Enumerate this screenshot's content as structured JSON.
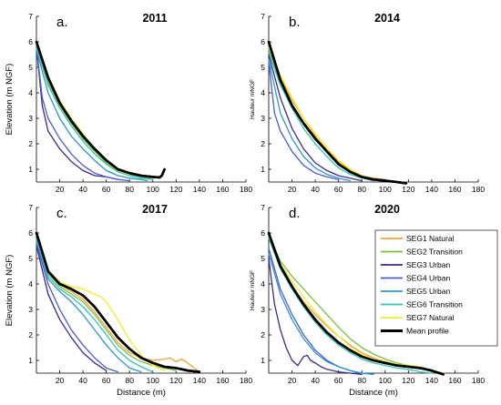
{
  "legend": {
    "entries": [
      {
        "label": "SEG1 Natural",
        "color": "#f2a341"
      },
      {
        "label": "SEG2 Transition",
        "color": "#7ac143"
      },
      {
        "label": "SEG3 Urban",
        "color": "#3a2a8c"
      },
      {
        "label": "SEG4 Urban",
        "color": "#4a5bd0"
      },
      {
        "label": "SEG5 Urban",
        "color": "#2e95d3"
      },
      {
        "label": "SEG6 Transition",
        "color": "#35c4b4"
      },
      {
        "label": "SEG7 Natural",
        "color": "#f3ea2f"
      },
      {
        "label": "Mean profile",
        "color": "#000000"
      }
    ]
  },
  "chart_data": [
    {
      "type": "line",
      "panel_label": "a.",
      "title": "2011",
      "ylabel": "Elevation (m NGF)",
      "xlabel": "",
      "xlim": [
        0,
        180
      ],
      "ylim": [
        0.5,
        7
      ],
      "xticks": [
        20,
        40,
        60,
        80,
        100,
        120,
        140,
        160,
        180
      ],
      "yticks": [
        1,
        2,
        3,
        4,
        5,
        6,
        7
      ],
      "series": [
        {
          "name": "SEG1 Natural",
          "x": [
            0,
            10,
            20,
            30,
            40,
            50,
            60,
            70,
            80,
            90,
            100,
            108
          ],
          "y": [
            5.9,
            4.5,
            3.6,
            2.9,
            2.3,
            1.8,
            1.35,
            1.0,
            0.85,
            0.75,
            0.7,
            0.7
          ]
        },
        {
          "name": "SEG2 Transition",
          "x": [
            0,
            10,
            20,
            30,
            40,
            50,
            60,
            70,
            80,
            90,
            98
          ],
          "y": [
            5.8,
            4.4,
            3.5,
            2.8,
            2.2,
            1.7,
            1.25,
            0.95,
            0.8,
            0.7,
            0.65
          ]
        },
        {
          "name": "SEG3 Urban",
          "x": [
            0,
            5,
            10,
            20,
            30,
            40,
            50,
            60,
            70
          ],
          "y": [
            5.8,
            3.5,
            2.5,
            1.8,
            1.3,
            0.95,
            0.75,
            0.7,
            0.6
          ]
        },
        {
          "name": "SEG4 Urban",
          "x": [
            0,
            5,
            10,
            20,
            30,
            40,
            50,
            60,
            70,
            80
          ],
          "y": [
            5.8,
            3.8,
            3.0,
            2.2,
            1.6,
            1.15,
            0.85,
            0.7,
            0.6,
            0.55
          ]
        },
        {
          "name": "SEG5 Urban",
          "x": [
            0,
            10,
            20,
            30,
            40,
            50,
            60,
            70,
            80,
            90,
            95
          ],
          "y": [
            5.7,
            4.0,
            3.0,
            2.3,
            1.8,
            1.35,
            0.95,
            0.75,
            0.65,
            0.6,
            0.55
          ]
        },
        {
          "name": "SEG6 Transition",
          "x": [
            0,
            10,
            20,
            30,
            40,
            50,
            60,
            70,
            80,
            90,
            100
          ],
          "y": [
            5.8,
            4.3,
            3.4,
            2.7,
            2.1,
            1.6,
            1.2,
            0.9,
            0.75,
            0.65,
            0.6
          ]
        },
        {
          "name": "SEG7 Natural",
          "x": [
            0,
            10,
            20,
            30,
            40,
            50,
            60,
            70,
            80
          ],
          "y": [
            5.9,
            4.6,
            3.7,
            3.0,
            2.4,
            1.8,
            1.3,
            0.95,
            0.8
          ]
        },
        {
          "name": "Mean profile",
          "x": [
            0,
            10,
            20,
            30,
            40,
            50,
            60,
            70,
            80,
            90,
            100,
            106,
            108,
            110
          ],
          "y": [
            6.0,
            4.6,
            3.6,
            2.9,
            2.3,
            1.8,
            1.35,
            1.0,
            0.85,
            0.75,
            0.7,
            0.68,
            0.78,
            1.0
          ]
        }
      ]
    },
    {
      "type": "line",
      "panel_label": "b.",
      "title": "2014",
      "ylabel": "Hauteur mNGF",
      "xlabel": "",
      "xlim": [
        0,
        180
      ],
      "ylim": [
        0.5,
        7
      ],
      "xticks": [
        20,
        40,
        60,
        80,
        100,
        120,
        140,
        160,
        180
      ],
      "yticks": [
        1,
        2,
        3,
        4,
        5,
        6,
        7
      ],
      "series": [
        {
          "name": "SEG1 Natural",
          "x": [
            0,
            10,
            20,
            30,
            40,
            50,
            60,
            70,
            80,
            90,
            100
          ],
          "y": [
            5.8,
            4.6,
            3.7,
            3.0,
            2.3,
            1.75,
            1.3,
            0.95,
            0.75,
            0.65,
            0.6
          ]
        },
        {
          "name": "SEG2 Transition",
          "x": [
            0,
            10,
            20,
            30,
            40,
            50,
            60,
            70,
            80,
            90,
            100
          ],
          "y": [
            5.7,
            4.4,
            3.5,
            2.8,
            2.2,
            1.65,
            1.2,
            0.9,
            0.7,
            0.6,
            0.55
          ]
        },
        {
          "name": "SEG3 Urban",
          "x": [
            0,
            10,
            20,
            30,
            40,
            50,
            60,
            70,
            80
          ],
          "y": [
            5.5,
            3.8,
            2.6,
            1.8,
            1.25,
            0.95,
            0.75,
            0.65,
            0.55
          ]
        },
        {
          "name": "SEG4 Urban",
          "x": [
            0,
            5,
            10,
            20,
            30,
            40,
            50,
            60
          ],
          "y": [
            5.2,
            3.2,
            2.5,
            1.7,
            1.15,
            0.85,
            0.7,
            0.6
          ]
        },
        {
          "name": "SEG5 Urban",
          "x": [
            0,
            10,
            20,
            30,
            40,
            50,
            60,
            70
          ],
          "y": [
            5.3,
            3.2,
            2.2,
            1.5,
            1.05,
            0.8,
            0.65,
            0.55
          ]
        },
        {
          "name": "SEG6 Transition",
          "x": [
            0,
            10,
            20,
            30,
            40,
            50,
            60,
            70,
            80,
            90
          ],
          "y": [
            5.6,
            4.3,
            3.4,
            2.6,
            2.0,
            1.5,
            1.05,
            0.8,
            0.65,
            0.55
          ]
        },
        {
          "name": "SEG7 Natural",
          "x": [
            0,
            10,
            20,
            30,
            40,
            50,
            60,
            70,
            80,
            90
          ],
          "y": [
            5.8,
            4.7,
            3.8,
            3.0,
            2.4,
            1.85,
            1.35,
            1.0,
            0.75,
            0.65
          ]
        },
        {
          "name": "Mean profile",
          "x": [
            0,
            10,
            20,
            30,
            40,
            50,
            60,
            70,
            80,
            90,
            100,
            110,
            118
          ],
          "y": [
            6.0,
            4.5,
            3.5,
            2.8,
            2.2,
            1.7,
            1.2,
            0.9,
            0.7,
            0.6,
            0.55,
            0.5,
            0.45
          ]
        }
      ]
    },
    {
      "type": "line",
      "panel_label": "c.",
      "title": "2017",
      "ylabel": "Elevation (m NGF)",
      "xlabel": "Distance (m)",
      "xlim": [
        0,
        180
      ],
      "ylim": [
        0.5,
        7
      ],
      "xticks": [
        20,
        40,
        60,
        80,
        100,
        120,
        140,
        160,
        180
      ],
      "yticks": [
        1,
        2,
        3,
        4,
        5,
        6,
        7
      ],
      "series": [
        {
          "name": "SEG1 Natural",
          "x": [
            0,
            10,
            20,
            30,
            40,
            50,
            60,
            70,
            80,
            90,
            100,
            110,
            115,
            120,
            125,
            130,
            140
          ],
          "y": [
            6.0,
            4.5,
            4.0,
            3.7,
            3.4,
            2.9,
            2.3,
            1.7,
            1.3,
            1.1,
            1.0,
            1.05,
            1.1,
            0.95,
            1.05,
            0.9,
            0.55
          ]
        },
        {
          "name": "SEG2 Transition",
          "x": [
            0,
            10,
            20,
            30,
            40,
            50,
            60,
            70,
            80,
            90,
            100,
            110,
            120
          ],
          "y": [
            5.8,
            4.4,
            3.9,
            3.6,
            3.3,
            2.8,
            2.2,
            1.6,
            1.2,
            0.95,
            0.8,
            0.7,
            0.6
          ]
        },
        {
          "name": "SEG3 Urban",
          "x": [
            0,
            10,
            20,
            30,
            40,
            50,
            60
          ],
          "y": [
            5.5,
            3.6,
            2.6,
            1.9,
            1.3,
            0.9,
            0.6
          ]
        },
        {
          "name": "SEG4 Urban",
          "x": [
            0,
            10,
            20,
            30,
            40,
            50,
            60,
            70
          ],
          "y": [
            5.6,
            4.0,
            3.0,
            2.2,
            1.6,
            1.1,
            0.7,
            0.55
          ]
        },
        {
          "name": "SEG5 Urban",
          "x": [
            0,
            10,
            20,
            30,
            40,
            50,
            60,
            70,
            80,
            90
          ],
          "y": [
            5.7,
            4.2,
            3.7,
            3.3,
            2.8,
            2.2,
            1.6,
            1.1,
            0.7,
            0.55
          ]
        },
        {
          "name": "SEG6 Transition",
          "x": [
            0,
            10,
            20,
            30,
            40,
            50,
            60,
            70,
            80,
            90,
            100
          ],
          "y": [
            5.8,
            4.3,
            3.8,
            3.5,
            3.1,
            2.6,
            2.0,
            1.4,
            1.0,
            0.75,
            0.55
          ]
        },
        {
          "name": "SEG7 Natural",
          "x": [
            0,
            10,
            20,
            30,
            40,
            50,
            55,
            60,
            70,
            80,
            90,
            100,
            110
          ],
          "y": [
            6.0,
            4.5,
            4.1,
            3.9,
            3.8,
            3.6,
            3.5,
            3.3,
            2.6,
            1.8,
            1.2,
            0.8,
            0.6
          ]
        },
        {
          "name": "Mean profile",
          "x": [
            0,
            10,
            20,
            30,
            40,
            50,
            60,
            70,
            80,
            90,
            100,
            110,
            120,
            130,
            140
          ],
          "y": [
            6.0,
            4.5,
            4.0,
            3.8,
            3.55,
            3.1,
            2.5,
            1.9,
            1.45,
            1.1,
            0.9,
            0.75,
            0.7,
            0.6,
            0.55
          ]
        }
      ]
    },
    {
      "type": "line",
      "panel_label": "d.",
      "title": "2020",
      "ylabel": "Hauteur mNGF",
      "xlabel": "Distance (m)",
      "xlim": [
        0,
        180
      ],
      "ylim": [
        0.5,
        7
      ],
      "xticks": [
        20,
        40,
        60,
        80,
        100,
        120,
        140,
        160,
        180
      ],
      "yticks": [
        1,
        2,
        3,
        4,
        5,
        6,
        7
      ],
      "series": [
        {
          "name": "SEG1 Natural",
          "x": [
            0,
            10,
            20,
            30,
            40,
            50,
            60,
            70,
            80,
            90,
            100,
            110,
            120,
            130,
            140,
            150
          ],
          "y": [
            5.9,
            4.6,
            3.9,
            3.3,
            2.8,
            2.35,
            1.95,
            1.6,
            1.3,
            1.1,
            0.95,
            0.85,
            0.8,
            0.75,
            0.6,
            0.5
          ]
        },
        {
          "name": "SEG2 Transition",
          "x": [
            0,
            10,
            20,
            30,
            40,
            50,
            60,
            70,
            80,
            90,
            100,
            110,
            120,
            130,
            140,
            150
          ],
          "y": [
            5.9,
            4.9,
            4.3,
            3.8,
            3.3,
            2.8,
            2.3,
            1.85,
            1.5,
            1.25,
            1.05,
            0.9,
            0.8,
            0.75,
            0.6,
            0.5
          ]
        },
        {
          "name": "SEG3 Urban",
          "x": [
            0,
            5,
            10,
            15,
            20,
            25,
            30,
            33,
            36,
            40,
            45,
            50,
            60,
            70,
            80
          ],
          "y": [
            5.0,
            3.2,
            2.2,
            1.5,
            1.0,
            0.8,
            1.15,
            1.2,
            1.0,
            0.9,
            0.75,
            0.65,
            0.55,
            0.5,
            0.45
          ]
        },
        {
          "name": "SEG4 Urban",
          "x": [
            0,
            10,
            20,
            30,
            40,
            50,
            60,
            70,
            80,
            90
          ],
          "y": [
            5.4,
            3.8,
            2.8,
            2.0,
            1.4,
            1.0,
            0.75,
            0.6,
            0.5,
            0.45
          ]
        },
        {
          "name": "SEG5 Urban",
          "x": [
            0,
            10,
            20,
            30,
            40,
            50,
            60,
            70,
            80,
            90
          ],
          "y": [
            5.2,
            3.6,
            2.6,
            1.85,
            1.3,
            0.95,
            0.75,
            0.6,
            0.5,
            0.45
          ]
        },
        {
          "name": "SEG6 Transition",
          "x": [
            0,
            10,
            20,
            30,
            40,
            50,
            60,
            70,
            80,
            90,
            100,
            110,
            120,
            130,
            140
          ],
          "y": [
            5.8,
            4.6,
            3.8,
            3.1,
            2.5,
            2.0,
            1.6,
            1.3,
            1.05,
            0.9,
            0.8,
            0.7,
            0.65,
            0.55,
            0.5
          ]
        },
        {
          "name": "SEG7 Natural",
          "x": [
            0,
            10,
            20,
            30,
            40,
            50,
            60,
            70,
            80,
            90,
            100,
            110,
            120,
            130,
            140
          ],
          "y": [
            5.9,
            4.8,
            4.1,
            3.5,
            2.9,
            2.4,
            1.95,
            1.55,
            1.25,
            1.05,
            0.95,
            0.85,
            0.8,
            0.75,
            0.55
          ]
        },
        {
          "name": "Mean profile",
          "x": [
            0,
            10,
            20,
            30,
            40,
            50,
            60,
            70,
            80,
            90,
            100,
            110,
            120,
            130,
            140,
            150
          ],
          "y": [
            6.0,
            4.7,
            3.9,
            3.2,
            2.6,
            2.1,
            1.7,
            1.4,
            1.15,
            1.0,
            0.9,
            0.8,
            0.75,
            0.7,
            0.6,
            0.45
          ]
        }
      ]
    }
  ]
}
